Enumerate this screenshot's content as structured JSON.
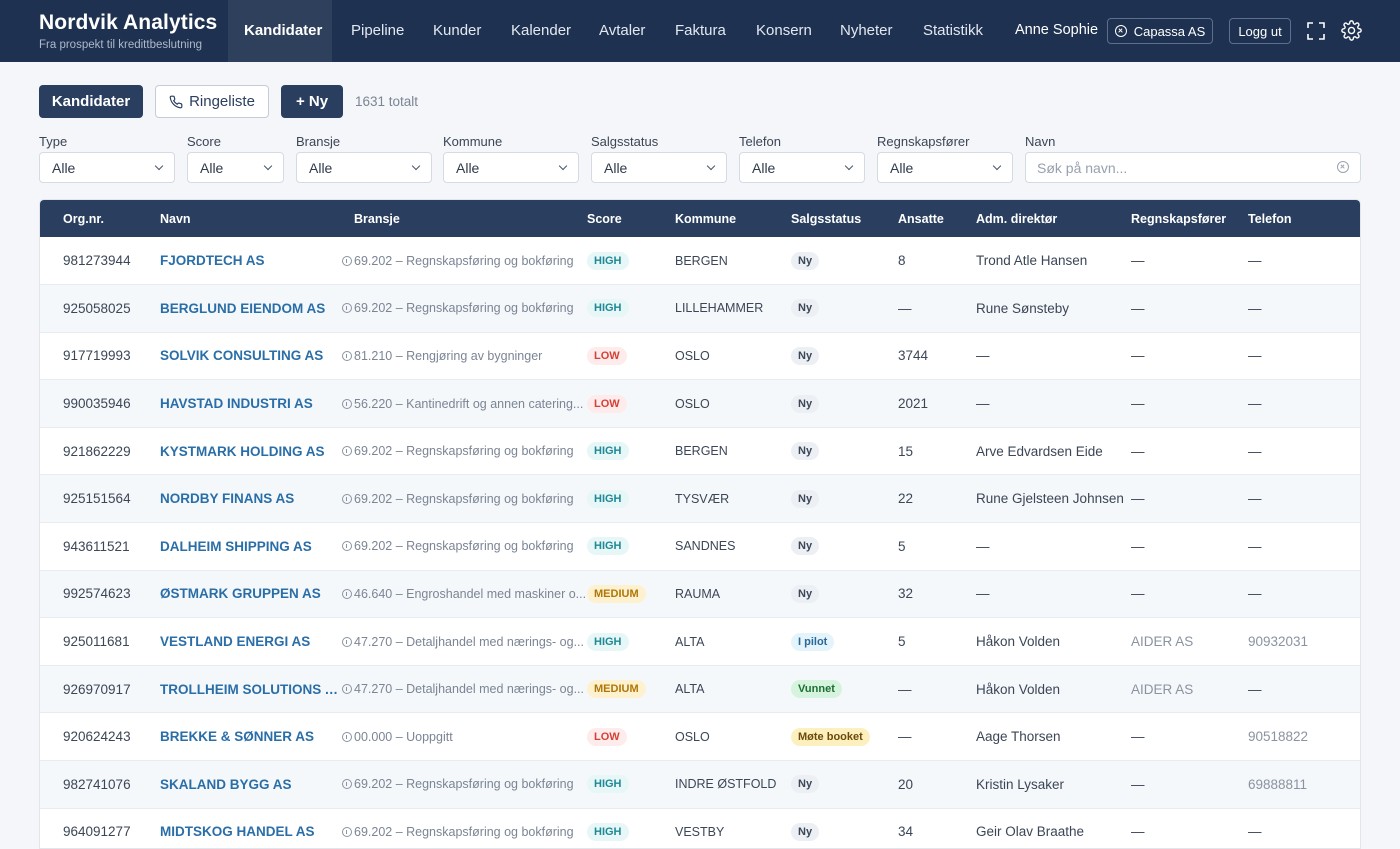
{
  "app": {
    "title": "Nordvik Analytics",
    "subtitle": "Fra prospekt til kredittbeslutning"
  },
  "nav": {
    "items": [
      "Kandidater",
      "Pipeline",
      "Kunder",
      "Kalender",
      "Avtaler",
      "Faktura",
      "Konsern",
      "Nyheter",
      "Statistikk"
    ],
    "active": "Kandidater",
    "user": "Anne Sophie",
    "company_label": "Capassa AS",
    "logout_label": "Logg ut",
    "icons": [
      "close-circle-icon",
      "fullscreen-icon",
      "gear-icon"
    ]
  },
  "toolbar": {
    "kandidater_label": "Kandidater",
    "ringeliste_label": "Ringeliste",
    "new_label": "+ Ny",
    "total_text": "1631 totalt",
    "icons": [
      "phone-icon"
    ]
  },
  "filters": {
    "type": {
      "label": "Type",
      "value": "Alle"
    },
    "score": {
      "label": "Score",
      "value": "Alle"
    },
    "bransje": {
      "label": "Bransje",
      "value": "Alle"
    },
    "kommune": {
      "label": "Kommune",
      "value": "Alle"
    },
    "salgsstatus": {
      "label": "Salgsstatus",
      "value": "Alle"
    },
    "telefon": {
      "label": "Telefon",
      "value": "Alle"
    },
    "regnskapsforer": {
      "label": "Regnskapsfører",
      "value": "Alle"
    },
    "navn": {
      "label": "Navn",
      "value": "",
      "placeholder": "Søk på navn..."
    }
  },
  "table": {
    "columns": [
      "Org.nr.",
      "Navn",
      "Bransje",
      "Score",
      "Kommune",
      "Salgsstatus",
      "Ansatte",
      "Adm. direktør",
      "Regnskapsfører",
      "Telefon"
    ],
    "rows": [
      {
        "orgnr": "981273944",
        "navn": "FJORDTECH AS",
        "bransje": "69.202 – Regnskapsføring og bokføring",
        "score": "HIGH",
        "kommune": "BERGEN",
        "status": "Ny",
        "ansatte": "8",
        "direktor": "Trond Atle Hansen",
        "regnskapsforer": "—",
        "telefon": "—"
      },
      {
        "orgnr": "925058025",
        "navn": "BERGLUND EIENDOM AS",
        "bransje": "69.202 – Regnskapsføring og bokføring",
        "score": "HIGH",
        "kommune": "LILLEHAMMER",
        "status": "Ny",
        "ansatte": "—",
        "direktor": "Rune Sønsteby",
        "regnskapsforer": "—",
        "telefon": "—"
      },
      {
        "orgnr": "917719993",
        "navn": "SOLVIK CONSULTING AS",
        "bransje": "81.210 – Rengjøring av bygninger",
        "score": "LOW",
        "kommune": "OSLO",
        "status": "Ny",
        "ansatte": "3744",
        "direktor": "—",
        "regnskapsforer": "—",
        "telefon": "—"
      },
      {
        "orgnr": "990035946",
        "navn": "HAVSTAD INDUSTRI AS",
        "bransje": "56.220 – Kantinedrift og annen catering...",
        "score": "LOW",
        "kommune": "OSLO",
        "status": "Ny",
        "ansatte": "2021",
        "direktor": "—",
        "regnskapsforer": "—",
        "telefon": "—"
      },
      {
        "orgnr": "921862229",
        "navn": "KYSTMARK HOLDING AS",
        "bransje": "69.202 – Regnskapsføring og bokføring",
        "score": "HIGH",
        "kommune": "BERGEN",
        "status": "Ny",
        "ansatte": "15",
        "direktor": "Arve Edvardsen Eide",
        "regnskapsforer": "—",
        "telefon": "—"
      },
      {
        "orgnr": "925151564",
        "navn": "NORDBY FINANS AS",
        "bransje": "69.202 – Regnskapsføring og bokføring",
        "score": "HIGH",
        "kommune": "TYSVÆR",
        "status": "Ny",
        "ansatte": "22",
        "direktor": "Rune Gjelsteen Johnsen",
        "regnskapsforer": "—",
        "telefon": "—"
      },
      {
        "orgnr": "943611521",
        "navn": "DALHEIM SHIPPING AS",
        "bransje": "69.202 – Regnskapsføring og bokføring",
        "score": "HIGH",
        "kommune": "SANDNES",
        "status": "Ny",
        "ansatte": "5",
        "direktor": "—",
        "regnskapsforer": "—",
        "telefon": "—"
      },
      {
        "orgnr": "992574623",
        "navn": "ØSTMARK GRUPPEN AS",
        "bransje": "46.640 – Engroshandel med maskiner o...",
        "score": "MEDIUM",
        "kommune": "RAUMA",
        "status": "Ny",
        "ansatte": "32",
        "direktor": "—",
        "regnskapsforer": "—",
        "telefon": "—"
      },
      {
        "orgnr": "925011681",
        "navn": "VESTLAND ENERGI AS",
        "bransje": "47.270 – Detaljhandel med nærings- og...",
        "score": "HIGH",
        "kommune": "ALTA",
        "status": "I pilot",
        "ansatte": "5",
        "direktor": "Håkon Volden",
        "regnskapsforer": "AIDER AS",
        "telefon": "90932031"
      },
      {
        "orgnr": "926970917",
        "navn": "TROLLHEIM SOLUTIONS AS",
        "bransje": "47.270 – Detaljhandel med nærings- og...",
        "score": "MEDIUM",
        "kommune": "ALTA",
        "status": "Vunnet",
        "ansatte": "—",
        "direktor": "Håkon Volden",
        "regnskapsforer": "AIDER AS",
        "telefon": "—"
      },
      {
        "orgnr": "920624243",
        "navn": "BREKKE & SØNNER AS",
        "bransje": "00.000 – Uoppgitt",
        "score": "LOW",
        "kommune": "OSLO",
        "status": "Møte booket",
        "ansatte": "—",
        "direktor": "Aage Thorsen",
        "regnskapsforer": "—",
        "telefon": "90518822"
      },
      {
        "orgnr": "982741076",
        "navn": "SKALAND BYGG AS",
        "bransje": "69.202 – Regnskapsføring og bokføring",
        "score": "HIGH",
        "kommune": "INDRE ØSTFOLD",
        "status": "Ny",
        "ansatte": "20",
        "direktor": "Kristin Lysaker",
        "regnskapsforer": "—",
        "telefon": "69888811"
      },
      {
        "orgnr": "964091277",
        "navn": "MIDTSKOG HANDEL AS",
        "bransje": "69.202 – Regnskapsføring og bokføring",
        "score": "HIGH",
        "kommune": "VESTBY",
        "status": "Ny",
        "ansatte": "34",
        "direktor": "Geir Olav Braathe",
        "regnskapsforer": "—",
        "telefon": "—"
      }
    ]
  },
  "colors": {
    "nav_bg": "#1e3150",
    "accent": "#2a3f5f",
    "link": "#2a6ea8",
    "score_high": "#1e8a95",
    "score_low": "#d44136",
    "score_medium": "#b07708"
  }
}
